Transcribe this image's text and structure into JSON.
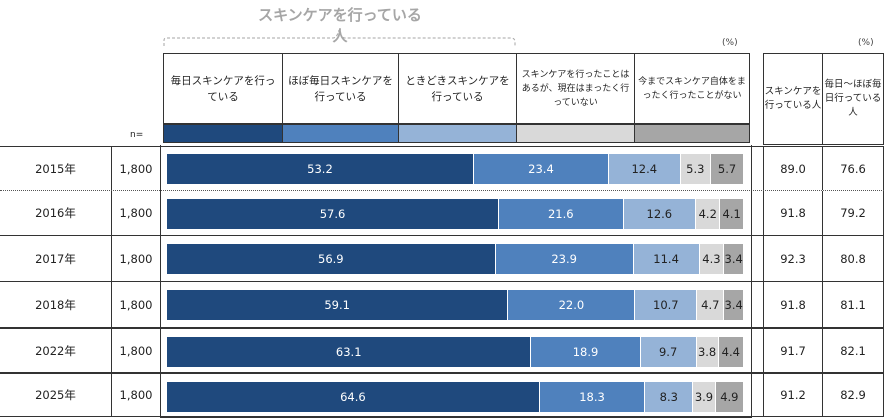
{
  "chart_data": {
    "type": "bar",
    "orientation": "horizontal",
    "stacked": true,
    "group_label": "スキンケアを行っている人",
    "unit_label": "(%)",
    "n_label": "n=",
    "categories": [
      "2015年",
      "2016年",
      "2017年",
      "2018年",
      "2022年",
      "2025年"
    ],
    "n": [
      "1,800",
      "1,800",
      "1,800",
      "1,800",
      "1,800",
      "1,800"
    ],
    "series": [
      {
        "name": "毎日スキンケアを行っている",
        "color": "#1f497d",
        "values": [
          53.2,
          57.6,
          56.9,
          59.1,
          63.1,
          64.6
        ]
      },
      {
        "name": "ほぼ毎日スキンケアを行っている",
        "color": "#4f81bd",
        "values": [
          23.4,
          21.6,
          23.9,
          22.0,
          18.9,
          18.3
        ]
      },
      {
        "name": "ときどきスキンケアを行っている",
        "color": "#95b3d7",
        "values": [
          12.4,
          12.6,
          11.4,
          10.7,
          9.7,
          8.3
        ]
      },
      {
        "name": "スキンケアを行ったことはあるが、現在はまったく行っていない",
        "color": "#d9d9d9",
        "values": [
          5.3,
          4.2,
          4.3,
          4.7,
          3.8,
          3.9
        ]
      },
      {
        "name": "今までスキンケア自体をまったく行ったことがない",
        "color": "#a6a6a6",
        "values": [
          5.7,
          4.1,
          3.4,
          3.4,
          4.4,
          4.9
        ]
      }
    ],
    "summary": {
      "unit_label": "(%)",
      "columns": [
        "スキンケアを行っている人",
        "毎日～ほぼ毎日行っている人"
      ],
      "values": [
        [
          "89.0",
          "76.6"
        ],
        [
          "91.8",
          "79.2"
        ],
        [
          "92.3",
          "80.8"
        ],
        [
          "91.8",
          "81.1"
        ],
        [
          "91.7",
          "82.1"
        ],
        [
          "91.2",
          "82.9"
        ]
      ]
    },
    "xlim": [
      0,
      100
    ]
  }
}
